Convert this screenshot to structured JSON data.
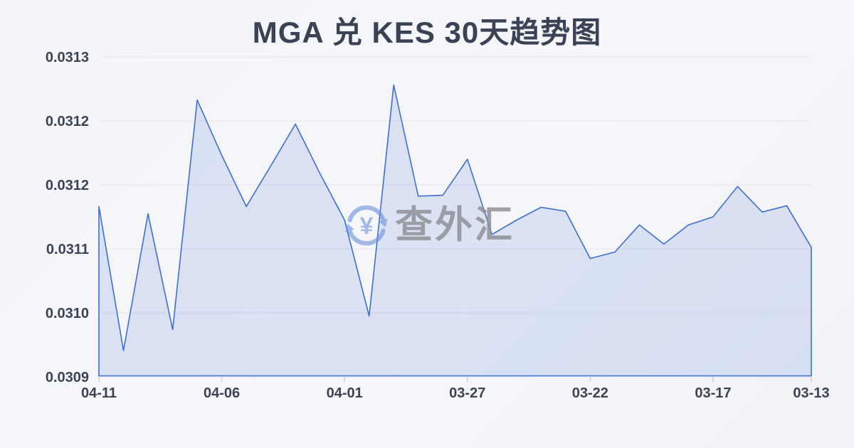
{
  "header": {
    "title": "MGA 兑 KES 30天趋势图"
  },
  "watermark": {
    "icon": "currency-exchange-refresh-icon",
    "icon_symbol": "¥",
    "text": "查外汇"
  },
  "colors": {
    "background": "#f2f4f7",
    "line": "#3f6fd0",
    "fill": "rgba(76,118,212,0.16)",
    "grid": "#e4e6eb",
    "tick": "#ccd0d8",
    "axis_text": "#3a4456",
    "title_text": "#3a4356",
    "watermark_text": "#8f9296",
    "watermark_icon": "#6f92d9"
  },
  "chart_data": {
    "type": "area",
    "title": "MGA 兑 KES 30天趋势图",
    "x": [
      "04-11",
      "04-10",
      "04-09",
      "04-08",
      "04-07",
      "04-06",
      "04-05",
      "04-04",
      "04-03",
      "04-02",
      "04-01",
      "03-31",
      "03-30",
      "03-29",
      "03-28",
      "03-27",
      "03-26",
      "03-25",
      "03-24",
      "03-23",
      "03-22",
      "03-21",
      "03-20",
      "03-19",
      "03-18",
      "03-17",
      "03-16",
      "03-15",
      "03-14",
      "03-13"
    ],
    "values": [
      0.031133,
      0.030953,
      0.031124,
      0.030979,
      0.031266,
      0.031197,
      0.031133,
      0.031184,
      0.031236,
      0.031174,
      0.031116,
      0.030996,
      0.031285,
      0.031146,
      0.031147,
      0.031192,
      0.031098,
      0.031116,
      0.031132,
      0.031127,
      0.031068,
      0.031076,
      0.03111,
      0.031086,
      0.03111,
      0.03112,
      0.031158,
      0.031126,
      0.031134,
      0.031082
    ],
    "x_direction": "most-recent-on-left",
    "x_tick_labels": [
      "04-11",
      "04-06",
      "04-01",
      "03-27",
      "03-22",
      "03-17",
      "03-13"
    ],
    "x_tick_indices": [
      0,
      5,
      10,
      15,
      20,
      25,
      29
    ],
    "y_tick_labels_top_to_bottom": [
      "0.0313",
      "0.0312",
      "0.0312",
      "0.0311",
      "0.0310",
      "0.0309"
    ],
    "ylim": [
      0.03092,
      0.03132
    ],
    "xlabel": "",
    "ylabel": "",
    "grid": "horizontal",
    "legend_position": "none"
  }
}
